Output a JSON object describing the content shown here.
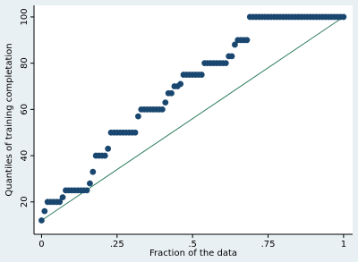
{
  "chart_data": {
    "type": "scatter",
    "x_label": "Fraction of the data",
    "y_label": "Quantiles of training completation",
    "xlim": [
      -0.025,
      1.03
    ],
    "ylim": [
      6,
      105
    ],
    "xticks": [
      0,
      {
        "value": 0.25,
        "label": ".25"
      },
      {
        "value": 0.5,
        "label": ".5"
      },
      {
        "value": 0.75,
        "label": ".75"
      },
      1
    ],
    "yticks": [
      20,
      40,
      60,
      80,
      100
    ],
    "grid": false,
    "x": [
      0,
      0.01,
      0.02,
      0.03,
      0.04,
      0.05,
      0.06,
      0.07,
      0.08,
      0.09,
      0.1,
      0.11,
      0.12,
      0.13,
      0.14,
      0.15,
      0.16,
      0.17,
      0.18,
      0.19,
      0.2,
      0.21,
      0.22,
      0.23,
      0.24,
      0.25,
      0.26,
      0.27,
      0.28,
      0.29,
      0.3,
      0.31,
      0.32,
      0.33,
      0.34,
      0.35,
      0.36,
      0.37,
      0.38,
      0.39,
      0.4,
      0.41,
      0.42,
      0.43,
      0.44,
      0.45,
      0.46,
      0.47,
      0.48,
      0.49,
      0.5,
      0.51,
      0.52,
      0.53,
      0.54,
      0.55,
      0.56,
      0.57,
      0.58,
      0.59,
      0.6,
      0.61,
      0.62,
      0.63,
      0.64,
      0.65,
      0.66,
      0.67,
      0.68,
      0.69,
      0.7,
      0.71,
      0.72,
      0.73,
      0.74,
      0.75,
      0.76,
      0.77,
      0.78,
      0.79,
      0.8,
      0.81,
      0.82,
      0.83,
      0.84,
      0.85,
      0.86,
      0.87,
      0.88,
      0.89,
      0.9,
      0.91,
      0.92,
      0.93,
      0.94,
      0.95,
      0.96,
      0.97,
      0.98,
      0.99,
      1
    ],
    "series": [
      {
        "color": "#1a476f",
        "values": [
          12,
          16,
          20,
          20,
          20,
          20,
          20,
          22,
          25,
          25,
          25,
          25,
          25,
          25,
          25,
          25,
          28,
          33,
          40,
          40,
          40,
          40,
          43,
          50,
          50,
          50,
          50,
          50,
          50,
          50,
          50,
          50,
          57,
          60,
          60,
          60,
          60,
          60,
          60,
          60,
          60,
          63,
          67,
          67,
          70,
          70,
          71,
          75,
          75,
          75,
          75,
          75,
          75,
          75,
          80,
          80,
          80,
          80,
          80,
          80,
          80,
          80,
          83,
          83,
          88,
          90,
          90,
          90,
          90,
          100,
          100,
          100,
          100,
          100,
          100,
          100,
          100,
          100,
          100,
          100,
          100,
          100,
          100,
          100,
          100,
          100,
          100,
          100,
          100,
          100,
          100,
          100,
          100,
          100,
          100,
          100,
          100,
          100,
          100,
          100,
          100
        ]
      }
    ],
    "reference_line": {
      "x": [
        0,
        1
      ],
      "values": [
        12,
        100
      ],
      "color": "#2e7d5b"
    }
  }
}
